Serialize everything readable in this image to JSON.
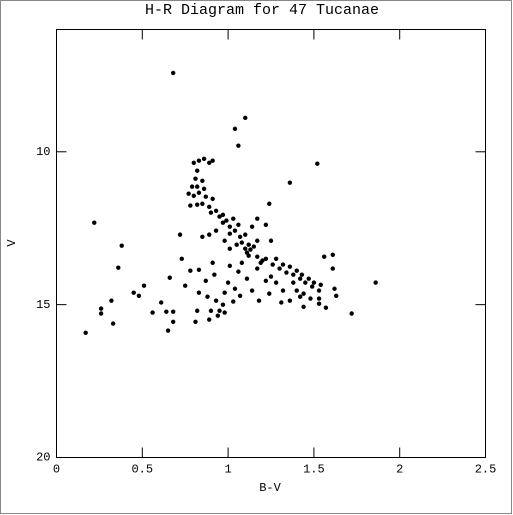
{
  "chart_data": {
    "type": "scatter",
    "title": "H-R Diagram for 47 Tucanae",
    "x_label": "B-V",
    "y_label": "V",
    "color": "#000000",
    "xlim": [
      0,
      2.5
    ],
    "ylim": [
      20,
      6
    ],
    "xticks": [
      0,
      0.5,
      1,
      1.5,
      2,
      2.5
    ],
    "yticks": [
      10,
      15,
      20
    ],
    "x": [
      0.68,
      1.1,
      1.04,
      1.06,
      1.52,
      1.36,
      1.86,
      1.72,
      0.22,
      0.17,
      0.38,
      0.36,
      0.26,
      0.26,
      0.32,
      0.33,
      0.45,
      0.51,
      0.48,
      0.56,
      0.61,
      0.64,
      0.65,
      0.66,
      0.68,
      0.68,
      0.72,
      0.73,
      0.75,
      0.78,
      0.81,
      0.82,
      0.83,
      0.83,
      0.85,
      0.87,
      0.88,
      0.89,
      0.9,
      0.91,
      0.92,
      0.93,
      0.94,
      0.95,
      0.97,
      0.98,
      0.98,
      1.0,
      1.01,
      1.03,
      1.04,
      1.06,
      1.07,
      1.08,
      1.11,
      1.12,
      1.14,
      1.17,
      1.18,
      1.2,
      1.22,
      1.24,
      1.25,
      1.24,
      1.22,
      1.17,
      0.8,
      0.82,
      0.83,
      0.86,
      0.89,
      0.91,
      0.81,
      0.82,
      0.79,
      0.77,
      0.8,
      0.83,
      0.85,
      0.86,
      0.87,
      0.78,
      0.82,
      0.85,
      0.89,
      0.91,
      0.9,
      0.93,
      0.95,
      0.97,
      0.97,
      0.99,
      1.01,
      1.03,
      1.01,
      1.04,
      1.06,
      1.07,
      1.05,
      1.08,
      1.1,
      1.1,
      1.12,
      1.11,
      1.13,
      1.15,
      1.14,
      1.17,
      1.01,
      0.98,
      0.93,
      0.89,
      1.17,
      1.19,
      1.22,
      1.26,
      1.28,
      1.3,
      1.32,
      1.34,
      1.36,
      1.38,
      1.4,
      1.42,
      1.43,
      1.45,
      1.47,
      1.49,
      1.5,
      1.53,
      1.54,
      1.44,
      1.4,
      1.38,
      1.42,
      1.48,
      1.53,
      1.56,
      1.61,
      1.61,
      1.62,
      1.63,
      1.57,
      1.53,
      1.44,
      1.36,
      1.32,
      1.28,
      1.25,
      1.31
    ],
    "values": [
      7.42,
      8.89,
      9.25,
      9.8,
      10.39,
      11.01,
      14.28,
      15.29,
      12.32,
      15.92,
      13.07,
      13.79,
      15.13,
      15.29,
      14.87,
      15.62,
      14.61,
      14.38,
      14.71,
      15.26,
      14.93,
      15.23,
      15.85,
      14.12,
      15.23,
      15.56,
      12.71,
      13.5,
      14.38,
      13.89,
      15.56,
      15.2,
      14.61,
      13.86,
      12.78,
      14.22,
      14.74,
      15.49,
      15.2,
      13.63,
      14.02,
      14.87,
      15.36,
      15.2,
      15.0,
      15.26,
      14.61,
      14.28,
      13.73,
      14.9,
      14.48,
      13.92,
      14.71,
      13.63,
      14.15,
      13.4,
      14.54,
      13.82,
      14.87,
      13.56,
      14.22,
      14.64,
      12.91,
      11.7,
      12.39,
      12.91,
      10.36,
      10.62,
      10.29,
      10.23,
      10.36,
      10.29,
      10.88,
      11.14,
      11.14,
      11.37,
      11.44,
      11.34,
      10.95,
      11.21,
      11.47,
      11.76,
      11.73,
      11.7,
      11.8,
      11.54,
      11.99,
      11.93,
      12.12,
      12.06,
      12.32,
      12.25,
      12.45,
      12.19,
      12.68,
      12.58,
      12.39,
      12.78,
      13.04,
      12.97,
      12.71,
      13.17,
      13.04,
      13.3,
      13.2,
      13.1,
      12.45,
      12.19,
      13.17,
      12.91,
      12.58,
      12.71,
      13.43,
      13.63,
      13.5,
      13.69,
      13.5,
      13.82,
      13.69,
      13.95,
      13.76,
      14.02,
      13.89,
      14.15,
      14.02,
      14.28,
      14.15,
      14.41,
      14.28,
      14.54,
      14.35,
      14.64,
      14.54,
      14.28,
      14.74,
      14.8,
      14.8,
      13.43,
      13.82,
      13.37,
      14.48,
      14.71,
      15.1,
      14.97,
      15.07,
      14.87,
      14.54,
      14.28,
      14.08,
      14.93
    ]
  }
}
